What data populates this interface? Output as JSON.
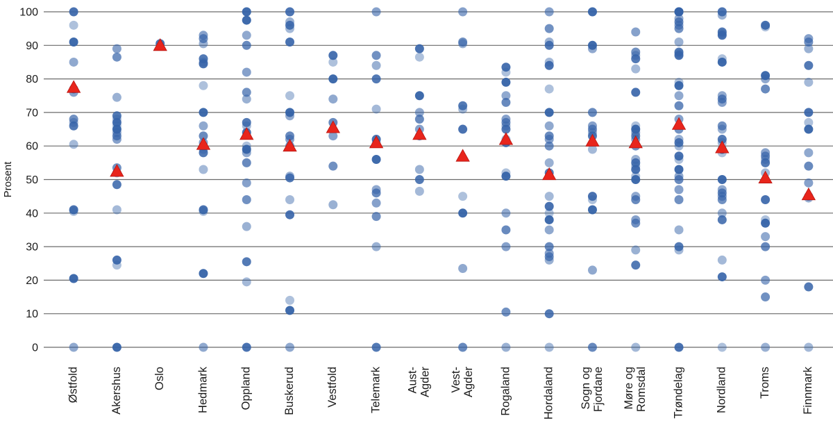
{
  "chart_data": {
    "type": "scatter",
    "title": "",
    "xlabel": "",
    "ylabel": "Prosent",
    "ylim": [
      0,
      100
    ],
    "yticks": [
      0,
      10,
      20,
      30,
      40,
      50,
      60,
      70,
      80,
      90,
      100
    ],
    "grid": true,
    "legend_position": "none",
    "colors": {
      "municipality_dot": "#3563a8",
      "county_mean_triangle": "#e8251c",
      "gridline": "#6a6a6a",
      "axis_text": "#1a1a1a"
    },
    "categories": [
      [
        "Østfold"
      ],
      [
        "Akershus"
      ],
      [
        "Oslo"
      ],
      [
        "Hedmark"
      ],
      [
        "Oppland"
      ],
      [
        "Buskerud"
      ],
      [
        "Vestfold"
      ],
      [
        "Telemark"
      ],
      [
        "Aust-",
        "Agder"
      ],
      [
        "Vest-",
        "Agder"
      ],
      [
        "Rogaland"
      ],
      [
        "Hordaland"
      ],
      [
        "Sogn og",
        "Fjordane"
      ],
      [
        "Møre og",
        "Romsdal"
      ],
      [
        "Trøndelag"
      ],
      [
        "Nordland"
      ],
      [
        "Troms"
      ],
      [
        "Finnmark"
      ]
    ],
    "series": [
      {
        "name": "municipality-values",
        "marker": "circle",
        "color": "#3563a8",
        "values_by_category": [
          [
            100,
            96,
            91,
            85,
            77,
            76,
            68,
            67,
            66,
            60.5,
            41,
            40.5,
            20.5,
            0
          ],
          [
            89,
            86.5,
            74.5,
            69,
            68,
            67,
            66,
            65,
            64,
            63,
            62,
            53.5,
            52,
            48.5,
            41,
            26,
            24.5,
            0
          ],
          [
            90.5
          ],
          [
            93,
            92,
            90.5,
            86,
            85,
            84.5,
            78,
            70,
            66,
            63,
            61,
            60,
            59,
            58,
            53,
            41,
            40.5,
            22,
            0
          ],
          [
            100,
            100,
            97.5,
            93,
            90,
            82,
            76,
            74,
            67,
            66,
            64,
            60,
            59,
            58,
            55,
            49,
            44,
            36,
            25.5,
            19.5,
            0
          ],
          [
            100,
            100,
            97,
            96,
            95,
            91,
            75,
            70,
            69,
            63,
            62,
            60,
            51,
            50.5,
            44,
            39.5,
            14,
            11,
            0
          ],
          [
            87,
            85,
            80,
            74,
            67,
            63,
            54,
            42.5
          ],
          [
            100,
            87,
            84,
            80,
            71,
            62,
            61,
            56,
            47,
            46,
            43,
            39,
            30,
            0
          ],
          [
            89,
            86.5,
            75,
            70,
            68,
            65,
            63,
            53,
            50,
            46.5
          ],
          [
            100,
            91,
            90.5,
            72,
            71,
            65,
            45,
            40,
            23.5,
            0
          ],
          [
            83.5,
            82,
            79,
            75,
            73,
            68,
            67,
            66,
            65,
            62,
            61,
            52,
            51,
            40,
            35,
            30,
            10.5,
            0
          ],
          [
            100,
            95,
            91,
            90,
            85,
            84,
            77,
            70,
            66,
            63,
            62,
            60,
            55,
            52,
            45,
            42,
            40,
            38,
            35,
            30,
            28,
            27,
            26,
            10,
            0
          ],
          [
            100,
            100,
            90,
            89,
            70,
            66,
            65,
            64,
            63,
            59,
            45,
            44,
            41,
            23,
            0
          ],
          [
            94,
            88,
            87,
            86,
            83,
            76,
            66,
            65,
            64,
            63,
            62,
            60,
            56,
            55,
            54,
            53,
            51,
            50,
            45,
            44,
            38,
            37,
            29,
            24.5,
            0
          ],
          [
            100,
            100,
            100,
            98,
            97,
            96,
            95,
            91,
            88,
            87.5,
            87,
            79,
            78,
            75,
            72,
            68,
            65,
            62,
            61,
            60,
            57,
            56,
            53,
            51,
            50,
            47,
            44,
            35,
            30,
            29,
            0
          ],
          [
            100,
            100,
            99,
            94,
            93.5,
            93,
            86,
            85,
            75,
            74,
            73,
            66,
            65,
            62,
            61,
            59,
            58,
            50,
            47,
            46,
            45,
            44,
            40,
            38,
            26,
            21,
            0
          ],
          [
            96,
            95.5,
            81,
            80,
            77,
            58,
            57,
            56,
            55,
            52,
            44,
            38,
            37,
            33,
            30,
            20,
            15,
            0
          ],
          [
            92,
            91,
            89,
            84,
            79,
            70,
            67,
            65,
            58,
            54,
            49,
            45,
            44.5,
            18,
            0
          ]
        ]
      },
      {
        "name": "county-mean",
        "marker": "triangle",
        "color": "#e8251c",
        "values_by_category": [
          [
            77.5
          ],
          [
            52.5
          ],
          [
            90
          ],
          [
            60.5
          ],
          [
            63.5
          ],
          [
            60
          ],
          [
            65.5
          ],
          [
            61
          ],
          [
            63.5
          ],
          [
            57
          ],
          [
            62
          ],
          [
            51.5
          ],
          [
            61.5
          ],
          [
            61
          ],
          [
            66.5
          ],
          [
            59.5
          ],
          [
            50.5
          ],
          [
            45.5
          ]
        ]
      }
    ]
  }
}
